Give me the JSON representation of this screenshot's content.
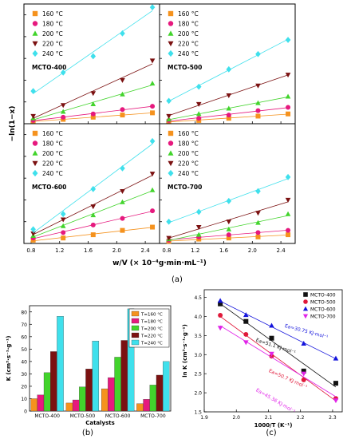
{
  "panel_labels": {
    "a": "(a)",
    "b": "(b)",
    "c": "(c)"
  },
  "chart_data": [
    {
      "type": "scatter",
      "panel": "(a)",
      "xlabel": "w/V (× 10⁻⁴g·min·mL⁻¹)",
      "ylabel": "−ln(1−x)",
      "xticks": [
        "0.8",
        "1.2",
        "1.6",
        "2.0",
        "2.4"
      ],
      "yticks": [
        "0.0",
        "0.2",
        "0.4",
        "0.6",
        "0.8",
        "1.0"
      ],
      "xlim": [
        0.7,
        2.6
      ],
      "ylim": [
        0,
        1.1
      ],
      "x": [
        0.83,
        1.25,
        1.67,
        2.08,
        2.5
      ],
      "series_names": [
        "160 °C",
        "180 °C",
        "200 °C",
        "220 °C",
        "240 °C"
      ],
      "colors": [
        "#f5921e",
        "#e6197e",
        "#42d42c",
        "#7b1111",
        "#3fe0ec"
      ],
      "subplots": [
        {
          "label": "MCTO-400",
          "series": [
            {
              "name": "160 °C",
              "values": [
                0.02,
                0.04,
                0.06,
                0.08,
                0.1
              ]
            },
            {
              "name": "180 °C",
              "values": [
                0.03,
                0.06,
                0.09,
                0.13,
                0.16
              ]
            },
            {
              "name": "200 °C",
              "values": [
                0.05,
                0.11,
                0.18,
                0.27,
                0.37
              ]
            },
            {
              "name": "220 °C",
              "values": [
                0.07,
                0.17,
                0.28,
                0.4,
                0.58
              ]
            },
            {
              "name": "240 °C",
              "values": [
                0.3,
                0.47,
                0.62,
                0.83,
                1.07
              ]
            }
          ]
        },
        {
          "label": "MCTO-500",
          "series": [
            {
              "name": "160 °C",
              "values": [
                0.02,
                0.03,
                0.05,
                0.07,
                0.09
              ]
            },
            {
              "name": "180 °C",
              "values": [
                0.03,
                0.05,
                0.08,
                0.12,
                0.15
              ]
            },
            {
              "name": "200 °C",
              "values": [
                0.04,
                0.09,
                0.14,
                0.19,
                0.25
              ]
            },
            {
              "name": "220 °C",
              "values": [
                0.07,
                0.18,
                0.26,
                0.35,
                0.45
              ]
            },
            {
              "name": "240 °C",
              "values": [
                0.21,
                0.34,
                0.5,
                0.64,
                0.77
              ]
            }
          ]
        },
        {
          "label": "MCTO-600",
          "series": [
            {
              "name": "160 °C",
              "values": [
                0.03,
                0.05,
                0.08,
                0.12,
                0.15
              ]
            },
            {
              "name": "180 °C",
              "values": [
                0.05,
                0.1,
                0.17,
                0.23,
                0.3
              ]
            },
            {
              "name": "200 °C",
              "values": [
                0.07,
                0.16,
                0.26,
                0.38,
                0.49
              ]
            },
            {
              "name": "220 °C",
              "values": [
                0.09,
                0.22,
                0.34,
                0.48,
                0.64
              ]
            },
            {
              "name": "240 °C",
              "values": [
                0.13,
                0.27,
                0.5,
                0.69,
                0.94
              ]
            }
          ]
        },
        {
          "label": "MCTO-700",
          "series": [
            {
              "name": "160 °C",
              "values": [
                0.02,
                0.04,
                0.05,
                0.06,
                0.08
              ]
            },
            {
              "name": "180 °C",
              "values": [
                0.03,
                0.06,
                0.08,
                0.1,
                0.12
              ]
            },
            {
              "name": "200 °C",
              "values": [
                0.04,
                0.08,
                0.13,
                0.19,
                0.27
              ]
            },
            {
              "name": "220 °C",
              "values": [
                0.05,
                0.15,
                0.2,
                0.28,
                0.4
              ]
            },
            {
              "name": "240 °C",
              "values": [
                0.2,
                0.29,
                0.39,
                0.48,
                0.61
              ]
            }
          ]
        }
      ]
    },
    {
      "type": "bar",
      "panel": "(b)",
      "xlabel": "Catalysts",
      "ylabel": "K (cm³·s⁻¹·g⁻¹)",
      "categories": [
        "MCTO-400",
        "MCTO-500",
        "MCTO-600",
        "MCTO-700"
      ],
      "yticks": [
        "0",
        "10",
        "20",
        "30",
        "40",
        "50",
        "60",
        "70",
        "80"
      ],
      "ylim": [
        0,
        85
      ],
      "legend_position": "top-right",
      "series": [
        {
          "name": "T=160 °C",
          "color": "#f5921e",
          "values": [
            10,
            6.5,
            18,
            6
          ]
        },
        {
          "name": "T=180 °C",
          "color": "#e6197e",
          "values": [
            13,
            9,
            27,
            9.5
          ]
        },
        {
          "name": "T=200 °C",
          "color": "#42d42c",
          "values": [
            31,
            19.5,
            43.5,
            21
          ]
        },
        {
          "name": "T=220 °C",
          "color": "#7b1111",
          "values": [
            48,
            34,
            57,
            29
          ]
        },
        {
          "name": "T=240 °C",
          "color": "#3fe0ec",
          "values": [
            76.5,
            56.5,
            82.5,
            40
          ]
        }
      ]
    },
    {
      "type": "scatter",
      "panel": "(c)",
      "xlabel": "1000/T (K⁻¹)",
      "ylabel": "ln K (cm³·s⁻¹·g⁻¹)",
      "xticks": [
        "1.9",
        "2.0",
        "2.1",
        "2.2",
        "2.3"
      ],
      "yticks": [
        "1.5",
        "2.0",
        "2.5",
        "3.0",
        "3.5",
        "4.0",
        "4.5"
      ],
      "xlim": [
        1.9,
        2.33
      ],
      "ylim": [
        1.5,
        4.7
      ],
      "x": [
        1.95,
        2.03,
        2.11,
        2.21,
        2.31
      ],
      "legend_position": "top-right",
      "series": [
        {
          "name": "MCTO-400",
          "color": "#111111",
          "marker": "square",
          "values": [
            4.33,
            3.87,
            3.43,
            2.57,
            2.25
          ],
          "annotation": "Ea=51.1 KJ·mol⁻¹"
        },
        {
          "name": "MCTO-500",
          "color": "#e0193a",
          "marker": "circle",
          "values": [
            4.03,
            3.53,
            2.96,
            2.34,
            1.85
          ],
          "annotation": "Ea=50.7 KJ·mol⁻¹"
        },
        {
          "name": "MCTO-600",
          "color": "#1414dc",
          "marker": "triangle-up",
          "values": [
            4.41,
            4.04,
            3.76,
            3.29,
            2.9
          ],
          "annotation": "Ea=30.75 KJ·mol⁻¹"
        },
        {
          "name": "MCTO-700",
          "color": "#e023e8",
          "marker": "triangle-down",
          "values": [
            3.7,
            3.32,
            3.02,
            2.5,
            1.8
          ],
          "annotation": "Ea=45.36 KJ·mol⁻¹"
        }
      ]
    }
  ]
}
